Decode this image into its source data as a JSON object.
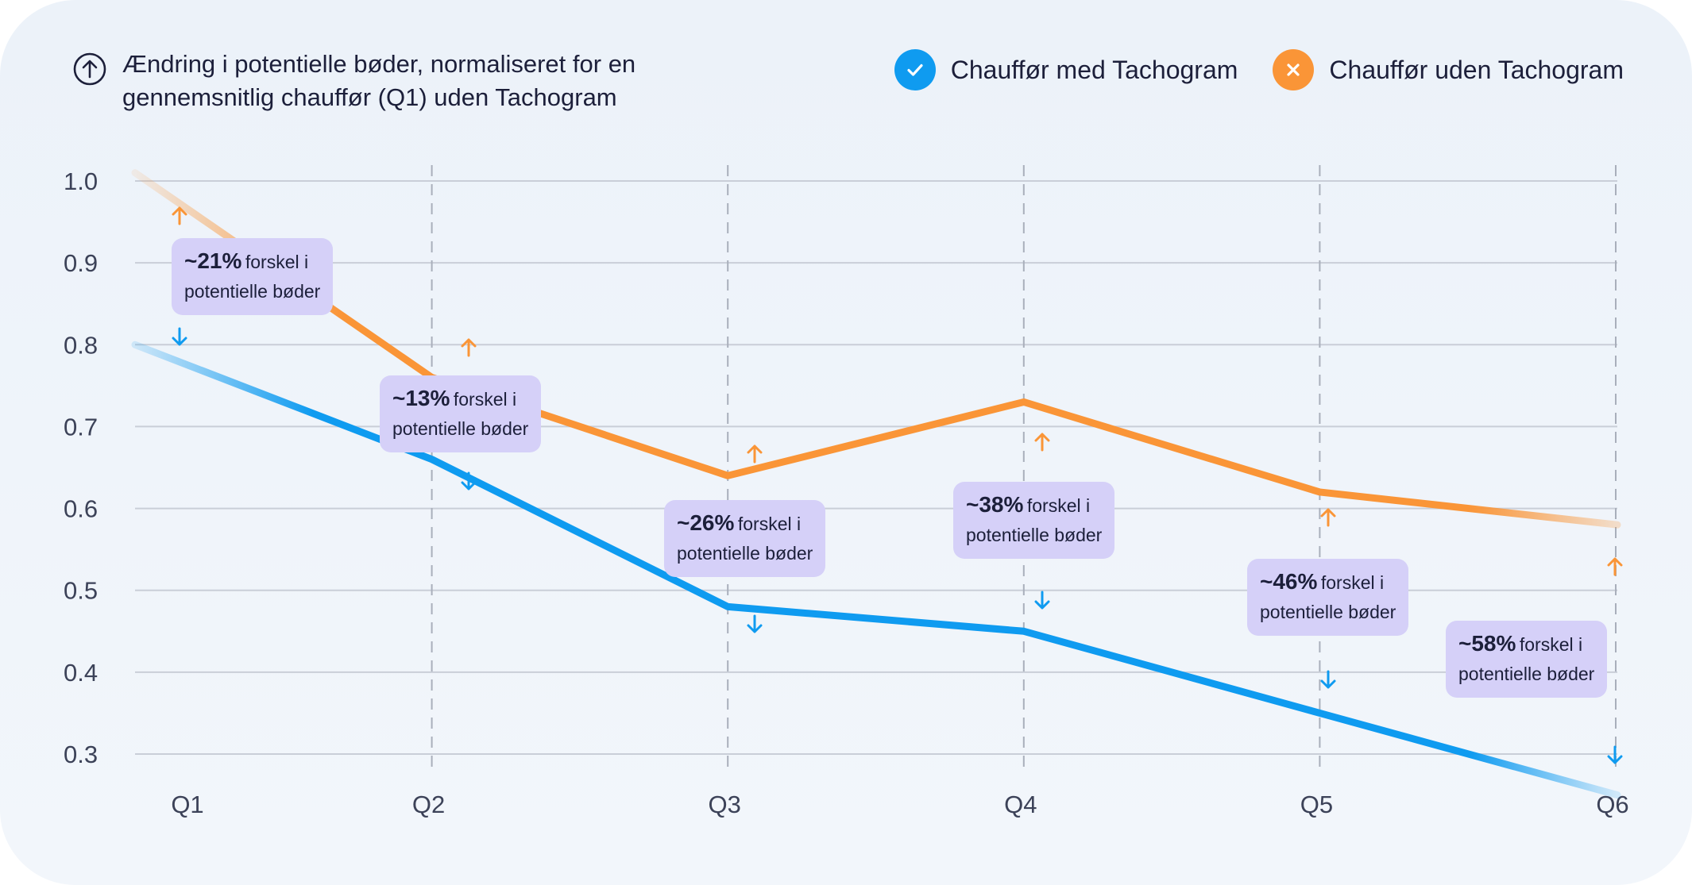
{
  "title": "Ændring i potentielle bøder, normaliseret for en gennemsnitlig chauffør (Q1) uden Tachogram",
  "legend": {
    "with": {
      "label": "Chauffør med Tachogram",
      "icon": "check-icon",
      "color": "#0f9bf0"
    },
    "without": {
      "label": "Chauffør uden Tachogram",
      "icon": "x-icon",
      "color": "#fa9537"
    }
  },
  "colors": {
    "with": "#0f9bf0",
    "without": "#fa9537",
    "annotation_bg": "#d5d0f8",
    "grid": "#c9ced8"
  },
  "chart_data": {
    "type": "line",
    "title": "Ændring i potentielle bøder, normaliseret for en gennemsnitlig chauffør (Q1) uden Tachogram",
    "categories": [
      "Q1",
      "Q2",
      "Q3",
      "Q4",
      "Q5",
      "Q6"
    ],
    "yticks": [
      "1.0",
      "0.9",
      "0.8",
      "0.7",
      "0.6",
      "0.5",
      "0.4",
      "0.3"
    ],
    "ylim": [
      0.3,
      1.0
    ],
    "grid": true,
    "legend_position": "top-right",
    "series": [
      {
        "name": "Chauffør med Tachogram",
        "values": [
          0.8,
          0.66,
          0.48,
          0.45,
          0.35,
          0.25
        ]
      },
      {
        "name": "Chauffør uden Tachogram",
        "values": [
          1.01,
          0.76,
          0.64,
          0.73,
          0.62,
          0.58
        ]
      }
    ],
    "annotations": [
      {
        "pct": "~21%",
        "text": "forskel i",
        "text2": "potentielle bøder"
      },
      {
        "pct": "~13%",
        "text": "forskel i",
        "text2": "potentielle bøder"
      },
      {
        "pct": "~26%",
        "text": "forskel i",
        "text2": "potentielle bøder"
      },
      {
        "pct": "~38%",
        "text": "forskel i",
        "text2": "potentielle bøder"
      },
      {
        "pct": "~46%",
        "text": "forskel i",
        "text2": "potentielle bøder"
      },
      {
        "pct": "~58%",
        "text": "forskel i",
        "text2": "potentielle bøder"
      }
    ]
  }
}
